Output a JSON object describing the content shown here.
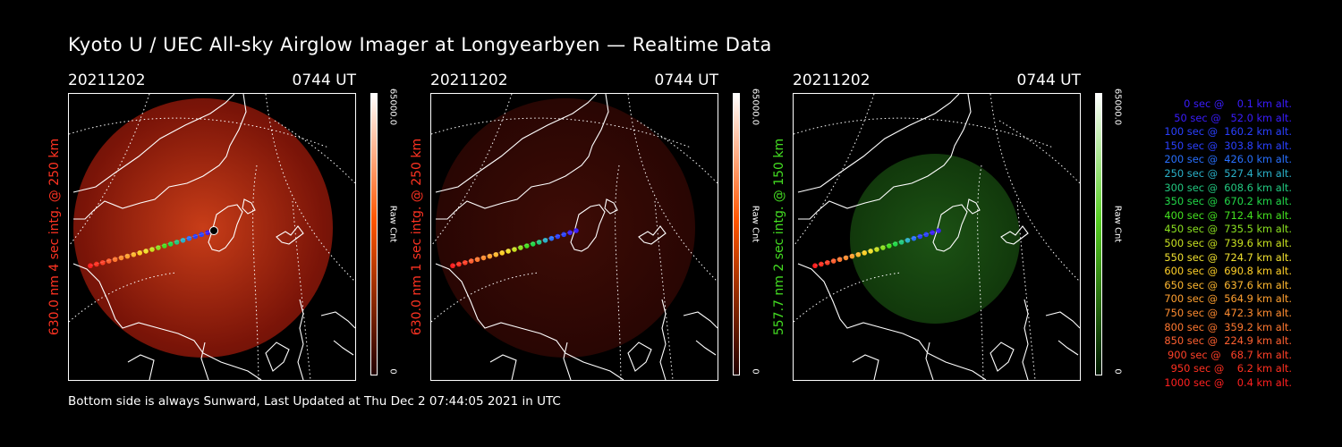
{
  "title": "Kyoto U / UEC All-sky Airglow Imager at Longyearbyen — Realtime Data",
  "footer": "Bottom side is always Sunward, Last Updated at Thu Dec  2 07:44:05 2021 in UTC",
  "panels": [
    {
      "date": "20211202",
      "time": "0744 UT",
      "ylabel": "630.0 nm 4 sec intg. @ 250 km",
      "label_color": "#ff3322",
      "cbar_max": "65000.0",
      "cbar_unit": "Raw Cnt",
      "cbar_min": "0",
      "cbar_top": "#ffffff",
      "cbar_mid": "#ff5500",
      "cbar_bottom": "#220000",
      "glow_inner": "#c83d18",
      "glow_outer": "#7a1408"
    },
    {
      "date": "20211202",
      "time": "0744 UT",
      "ylabel": "630.0 nm 1 sec intg. @ 250 km",
      "label_color": "#ff3322",
      "cbar_max": "65000.0",
      "cbar_unit": "Raw Cnt",
      "cbar_min": "0",
      "cbar_top": "#ffffff",
      "cbar_mid": "#ff5500",
      "cbar_bottom": "#220000",
      "glow_inner": "#3e0c06",
      "glow_outer": "#2a0603"
    },
    {
      "date": "20211202",
      "time": "0744 UT",
      "ylabel": "557.7 nm 2 sec intg. @ 150 km",
      "label_color": "#44dd22",
      "cbar_max": "65000.0",
      "cbar_unit": "Raw Cnt",
      "cbar_min": "0",
      "cbar_top": "#ffffff",
      "cbar_mid": "#55cc22",
      "cbar_bottom": "#001800",
      "glow_inner": "#1c5214",
      "glow_outer": "#123a0c"
    }
  ],
  "legend": [
    {
      "text": "   0 sec @    0.1 km alt.",
      "color": "#3a1cff"
    },
    {
      "text": "  50 sec @   52.0 km alt.",
      "color": "#3a1cff"
    },
    {
      "text": " 100 sec @  160.2 km alt.",
      "color": "#2a40ff"
    },
    {
      "text": " 150 sec @  303.8 km alt.",
      "color": "#2a40ff"
    },
    {
      "text": " 200 sec @  426.0 km alt.",
      "color": "#2870ff"
    },
    {
      "text": " 250 sec @  527.4 km alt.",
      "color": "#2ab0c8"
    },
    {
      "text": " 300 sec @  608.6 km alt.",
      "color": "#22c880"
    },
    {
      "text": " 350 sec @  670.2 km alt.",
      "color": "#22d848"
    },
    {
      "text": " 400 sec @  712.4 km alt.",
      "color": "#44e020"
    },
    {
      "text": " 450 sec @  735.5 km alt.",
      "color": "#8ae020"
    },
    {
      "text": " 500 sec @  739.6 km alt.",
      "color": "#c8e020"
    },
    {
      "text": " 550 sec @  724.7 km alt.",
      "color": "#f0e030"
    },
    {
      "text": " 600 sec @  690.8 km alt.",
      "color": "#ffd028"
    },
    {
      "text": " 650 sec @  637.6 km alt.",
      "color": "#ffb830"
    },
    {
      "text": " 700 sec @  564.9 km alt.",
      "color": "#ffa030"
    },
    {
      "text": " 750 sec @  472.3 km alt.",
      "color": "#ff8c30"
    },
    {
      "text": " 800 sec @  359.2 km alt.",
      "color": "#ff7830"
    },
    {
      "text": " 850 sec @  224.9 km alt.",
      "color": "#ff6030"
    },
    {
      "text": " 900 sec @   68.7 km alt.",
      "color": "#ff4028"
    },
    {
      "text": " 950 sec @    6.2 km alt.",
      "color": "#ff3020"
    },
    {
      "text": "1000 sec @    0.4 km alt.",
      "color": "#ff2020"
    }
  ]
}
